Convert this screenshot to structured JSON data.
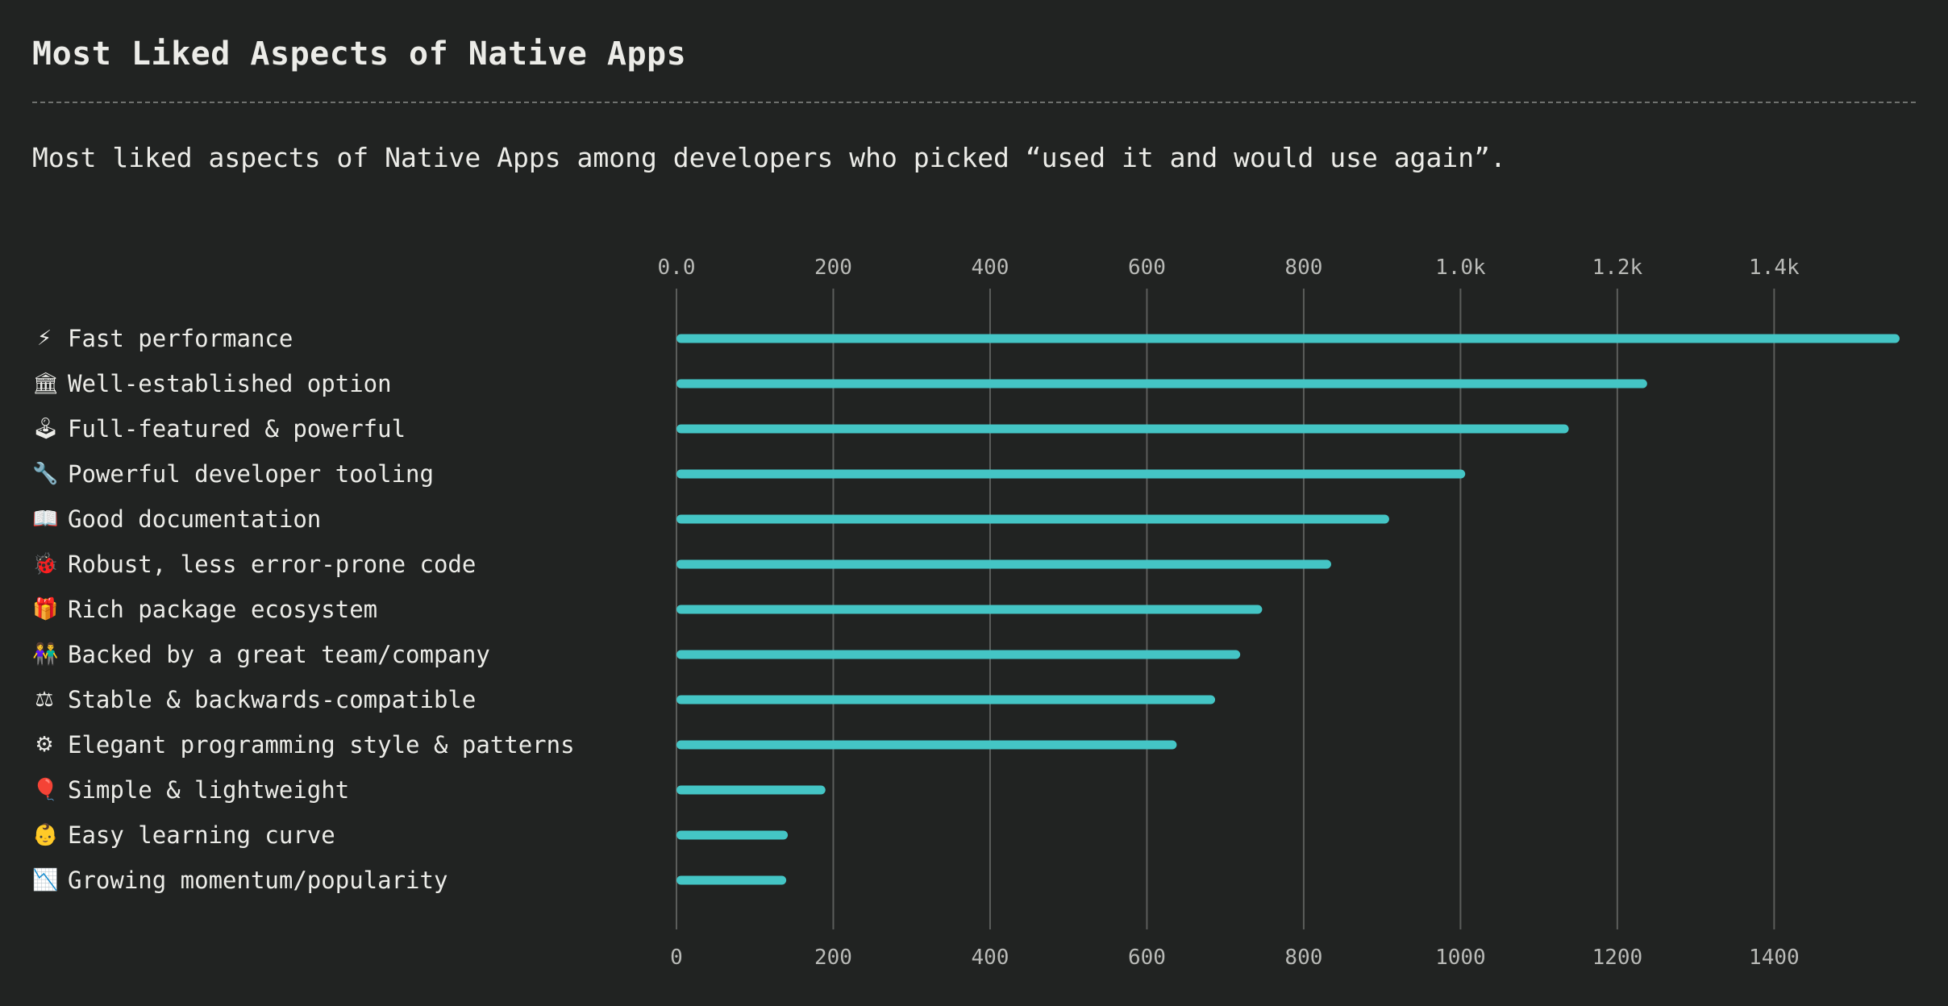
{
  "header": {
    "title": "Most Liked Aspects of Native Apps",
    "subtitle": "Most liked aspects of Native Apps among developers who picked “used it and would use again”."
  },
  "colors": {
    "background": "#212322",
    "bar": "#44c5c5",
    "grid": "#5b5d5b",
    "text": "#ecece8",
    "axis_text": "#b9bab7"
  },
  "chart_data": {
    "type": "bar",
    "orientation": "horizontal",
    "categories": [
      "Fast performance",
      "Well-established option",
      "Full-featured & powerful",
      "Powerful developer tooling",
      "Good documentation",
      "Robust, less error-prone code",
      "Rich package ecosystem",
      "Backed by a great team/company",
      "Stable & backwards-compatible",
      "Elegant programming style & patterns",
      "Simple & lightweight",
      "Easy learning curve",
      "Growing momentum/popularity"
    ],
    "icons": [
      "⚡",
      "🏛",
      "🕹",
      "🔧",
      "📖",
      "🐞",
      "🎁",
      "👫",
      "⚖",
      "⚙",
      "🎈",
      "👶",
      "📉"
    ],
    "icon_names": [
      "lightning-icon",
      "building-icon",
      "joystick-icon",
      "wrench-icon",
      "book-icon",
      "bug-icon",
      "gift-icon",
      "team-icon",
      "scales-icon",
      "gear-icon",
      "balloon-icon",
      "baby-icon",
      "chart-icon"
    ],
    "values": [
      1560,
      1238,
      1138,
      1006,
      909,
      835,
      747,
      719,
      687,
      638,
      190,
      142,
      140
    ],
    "xlim": [
      0,
      1560
    ],
    "top_ticks": [
      {
        "value": 0,
        "label": "0.0"
      },
      {
        "value": 200,
        "label": "200"
      },
      {
        "value": 400,
        "label": "400"
      },
      {
        "value": 600,
        "label": "600"
      },
      {
        "value": 800,
        "label": "800"
      },
      {
        "value": 1000,
        "label": "1.0k"
      },
      {
        "value": 1200,
        "label": "1.2k"
      },
      {
        "value": 1400,
        "label": "1.4k"
      }
    ],
    "bottom_ticks": [
      {
        "value": 0,
        "label": "0"
      },
      {
        "value": 200,
        "label": "200"
      },
      {
        "value": 400,
        "label": "400"
      },
      {
        "value": 600,
        "label": "600"
      },
      {
        "value": 800,
        "label": "800"
      },
      {
        "value": 1000,
        "label": "1000"
      },
      {
        "value": 1200,
        "label": "1200"
      },
      {
        "value": 1400,
        "label": "1400"
      }
    ],
    "grid": true,
    "title": "",
    "xlabel": "",
    "ylabel": ""
  }
}
